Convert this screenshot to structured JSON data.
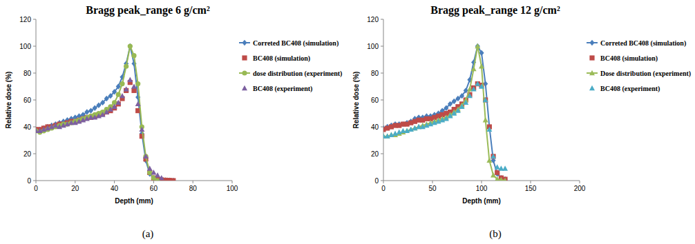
{
  "chart_data": [
    {
      "type": "line",
      "title": "Bragg peak_range 6 g/cm²",
      "x_label": "Depth (mm)",
      "y_label": "Relative dose (%)",
      "xlim": [
        0,
        100
      ],
      "xticks": [
        0,
        20,
        40,
        60,
        80,
        100
      ],
      "ylim": [
        0,
        120
      ],
      "yticks": [
        0,
        20,
        40,
        60,
        80,
        100,
        120
      ],
      "grid": false,
      "legend": "right",
      "series": [
        {
          "name": "Correted BC408 (simulation)",
          "color": "#4a7ebb",
          "marker": "diamond",
          "line_style": "solid",
          "x": [
            0,
            2,
            4,
            6,
            8,
            10,
            12,
            14,
            16,
            18,
            20,
            22,
            24,
            26,
            28,
            30,
            32,
            34,
            36,
            38,
            40,
            42,
            44,
            46,
            48,
            50,
            52,
            54,
            56,
            58,
            60,
            62,
            64,
            66,
            68,
            70
          ],
          "values": [
            38,
            38,
            39,
            40,
            41,
            42,
            43,
            44,
            45,
            46,
            47,
            48,
            49,
            51,
            52,
            54,
            56,
            58,
            61,
            63,
            66,
            70,
            77,
            87,
            100,
            87,
            62,
            35,
            15,
            5,
            2,
            1,
            0.5,
            0.3,
            0.2,
            0
          ]
        },
        {
          "name": "BC408 (simulation)",
          "color": "#be4b48",
          "marker": "square",
          "line_style": "none",
          "x": [
            0,
            2,
            4,
            6,
            8,
            10,
            12,
            14,
            16,
            18,
            20,
            22,
            24,
            26,
            28,
            30,
            32,
            34,
            36,
            38,
            40,
            42,
            44,
            46,
            48,
            50,
            52,
            54,
            56,
            58,
            60,
            62,
            64,
            66,
            68,
            70
          ],
          "values": [
            38,
            38,
            39,
            40,
            40,
            41,
            42,
            42,
            43,
            44,
            44,
            45,
            46,
            47,
            47,
            48,
            49,
            50,
            51,
            52,
            54,
            57,
            61,
            67,
            73,
            67,
            52,
            33,
            16,
            6,
            2,
            1,
            0.5,
            0.3,
            0.2,
            0
          ]
        },
        {
          "name": "dose distribution (experiment)",
          "color": "#98b954",
          "marker": "circle",
          "line_style": "solid",
          "x": [
            0,
            2,
            4,
            6,
            8,
            10,
            12,
            14,
            16,
            18,
            20,
            22,
            24,
            26,
            28,
            30,
            32,
            34,
            36,
            38,
            40,
            42,
            44,
            46,
            48,
            50,
            52,
            54,
            56,
            58,
            60,
            62
          ],
          "values": [
            37,
            36,
            37,
            38,
            39,
            40,
            41,
            42,
            42,
            43,
            44,
            45,
            46,
            47,
            48,
            49,
            50,
            51,
            53,
            55,
            58,
            64,
            72,
            85,
            100,
            93,
            72,
            40,
            18,
            6,
            2,
            0
          ]
        },
        {
          "name": "BC408 (experiment)",
          "color": "#7d60a0",
          "marker": "triangle",
          "line_style": "none",
          "x": [
            0,
            2,
            4,
            6,
            8,
            10,
            12,
            14,
            16,
            18,
            20,
            22,
            24,
            26,
            28,
            30,
            32,
            34,
            36,
            38,
            40,
            42,
            44,
            46,
            48,
            50,
            52,
            54,
            56,
            58,
            60,
            62,
            64
          ],
          "values": [
            37,
            37,
            38,
            39,
            40,
            41,
            40,
            41,
            42,
            43,
            43,
            44,
            45,
            46,
            47,
            47,
            48,
            49,
            51,
            53,
            55,
            58,
            63,
            68,
            75,
            70,
            57,
            38,
            18,
            9,
            6,
            4,
            2
          ]
        }
      ]
    },
    {
      "type": "line",
      "title": "Bragg peak_range 12 g/cm²",
      "x_label": "Depth (mm)",
      "y_label": "Relative dose (%)",
      "xlim": [
        0,
        200
      ],
      "xticks": [
        0,
        50,
        100,
        150,
        200
      ],
      "ylim": [
        0,
        120
      ],
      "yticks": [
        0,
        20,
        40,
        60,
        80,
        100,
        120
      ],
      "grid": false,
      "legend": "right",
      "series": [
        {
          "name": "Correted BC408 (simulation)",
          "color": "#4a7ebb",
          "marker": "diamond",
          "line_style": "solid",
          "x": [
            0,
            4,
            8,
            12,
            16,
            20,
            24,
            28,
            32,
            36,
            40,
            44,
            48,
            52,
            56,
            60,
            64,
            68,
            72,
            76,
            80,
            84,
            88,
            92,
            96,
            100,
            104,
            108,
            112,
            116,
            120,
            124
          ],
          "values": [
            39,
            40,
            41,
            42,
            42,
            42,
            43,
            44,
            46,
            47,
            47,
            48,
            48,
            49,
            50,
            52,
            54,
            57,
            59,
            61,
            63,
            67,
            75,
            88,
            100,
            95,
            72,
            40,
            15,
            5,
            2,
            1
          ]
        },
        {
          "name": "BC408 (simulation)",
          "color": "#be4b48",
          "marker": "square",
          "line_style": "none",
          "x": [
            0,
            4,
            8,
            12,
            16,
            20,
            24,
            28,
            32,
            36,
            40,
            44,
            48,
            52,
            56,
            60,
            64,
            68,
            72,
            76,
            80,
            84,
            88,
            92,
            96,
            100,
            104,
            108,
            112,
            116,
            120,
            124
          ],
          "values": [
            38,
            39,
            40,
            41,
            41,
            42,
            42,
            43,
            44,
            45,
            45,
            46,
            46,
            47,
            48,
            49,
            50,
            51,
            53,
            55,
            57,
            60,
            64,
            69,
            72,
            71,
            60,
            40,
            18,
            6,
            2,
            1
          ]
        },
        {
          "name": "Dose distribution (experiment)",
          "color": "#9bbb59",
          "marker": "triangle",
          "line_style": "solid",
          "x": [
            0,
            4,
            8,
            12,
            16,
            20,
            24,
            28,
            32,
            36,
            40,
            44,
            48,
            52,
            56,
            60,
            64,
            68,
            72,
            76,
            80,
            84,
            88,
            92,
            96,
            100,
            104,
            108,
            112,
            116,
            120,
            124
          ],
          "values": [
            33,
            33,
            34,
            34,
            35,
            36,
            37,
            38,
            39,
            40,
            41,
            42,
            43,
            44,
            45,
            46,
            47,
            49,
            51,
            53,
            56,
            60,
            68,
            83,
            100,
            85,
            45,
            15,
            4,
            1,
            0.5,
            0
          ]
        },
        {
          "name": "BC408 (experiment)",
          "color": "#4bacc6",
          "marker": "triangle",
          "line_style": "none",
          "x": [
            0,
            4,
            8,
            12,
            16,
            20,
            24,
            28,
            32,
            36,
            40,
            44,
            48,
            52,
            56,
            60,
            64,
            68,
            72,
            76,
            80,
            84,
            88,
            92,
            96,
            100,
            104,
            108,
            112,
            116,
            120,
            124
          ],
          "values": [
            33,
            33,
            34,
            35,
            36,
            37,
            37,
            38,
            39,
            40,
            40,
            41,
            42,
            43,
            44,
            45,
            46,
            48,
            50,
            52,
            55,
            58,
            63,
            68,
            72,
            70,
            60,
            38,
            18,
            10,
            9,
            9
          ]
        }
      ]
    }
  ],
  "captions": [
    "(a)",
    "(b)"
  ]
}
